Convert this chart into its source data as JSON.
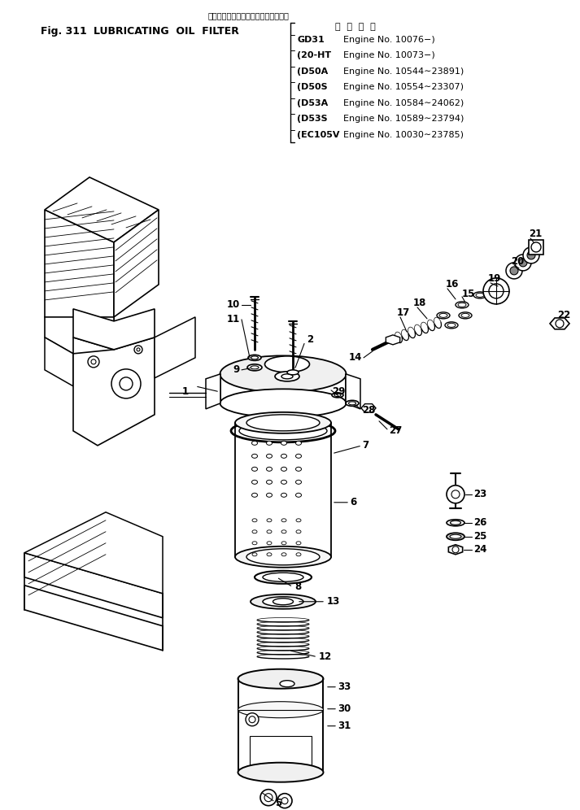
{
  "title_japanese": "ルーブリケーティングオイルフィルタ",
  "title_fig": "Fig. 311",
  "title_english": "LUBRICATING  OIL  FILTER",
  "header_label": "適  用  号  機",
  "engine_entries": [
    {
      "model": "GD31",
      "text": "Engine No. 10076−)"
    },
    {
      "model": "20-HT",
      "text": "Engine No. 10073−)"
    },
    {
      "model": "D50A",
      "text": "Engine No. 10544∼23891)"
    },
    {
      "model": "D50S",
      "text": "Engine No. 10554∼23307)"
    },
    {
      "model": "D53A",
      "text": "Engine No. 10584∼24062)"
    },
    {
      "model": "D53S",
      "text": "Engine No. 10589∼23794)"
    },
    {
      "model": "EC105V",
      "text": "Engine No. 10030∼23785)"
    }
  ],
  "bg_color": "#ffffff",
  "line_color": "#000000"
}
